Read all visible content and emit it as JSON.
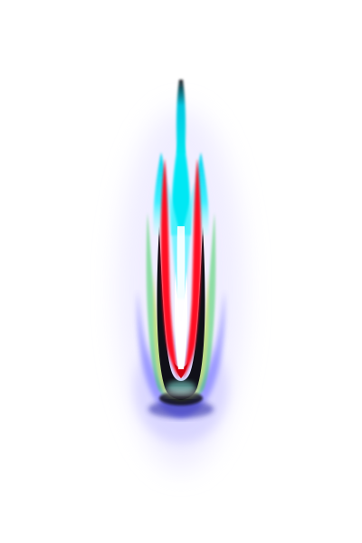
{
  "image": {
    "kind": "abstract-flame-render",
    "background_color": "#ffffff",
    "palette": {
      "glow_violet": "#dcd8ff",
      "outer_blue": "#3c3cff",
      "cyan": "#00e0f0",
      "red": "#ff1020",
      "black": "#000000",
      "green": "#20c040",
      "yellow": "#e0e060",
      "white_core": "#ffffff"
    }
  }
}
